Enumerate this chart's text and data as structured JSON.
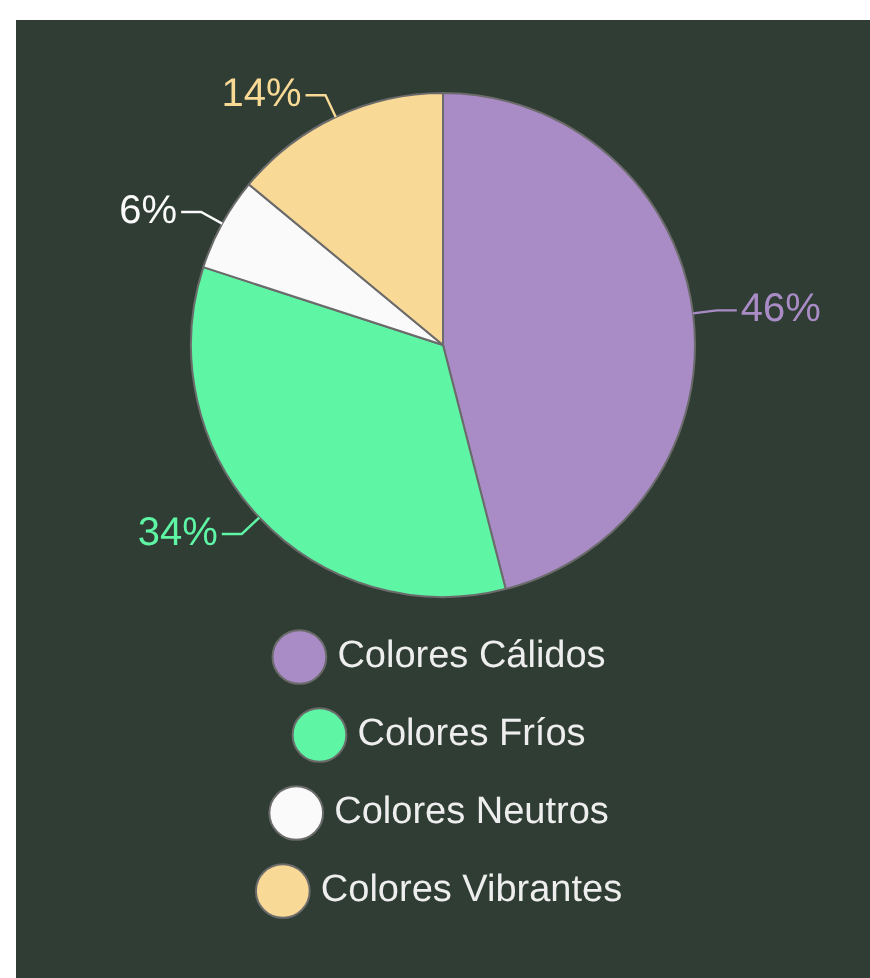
{
  "chart_data": {
    "type": "pie",
    "categories": [
      "Colores Cálidos",
      "Colores Fríos",
      "Colores Neutros",
      "Colores Vibrantes"
    ],
    "values": [
      46,
      34,
      6,
      14
    ],
    "value_labels": [
      "46%",
      "34%",
      "6%",
      "14%"
    ],
    "colors": [
      "#a98bc6",
      "#5ef5a5",
      "#fafafa",
      "#f9d996"
    ],
    "legend": "bottom"
  }
}
